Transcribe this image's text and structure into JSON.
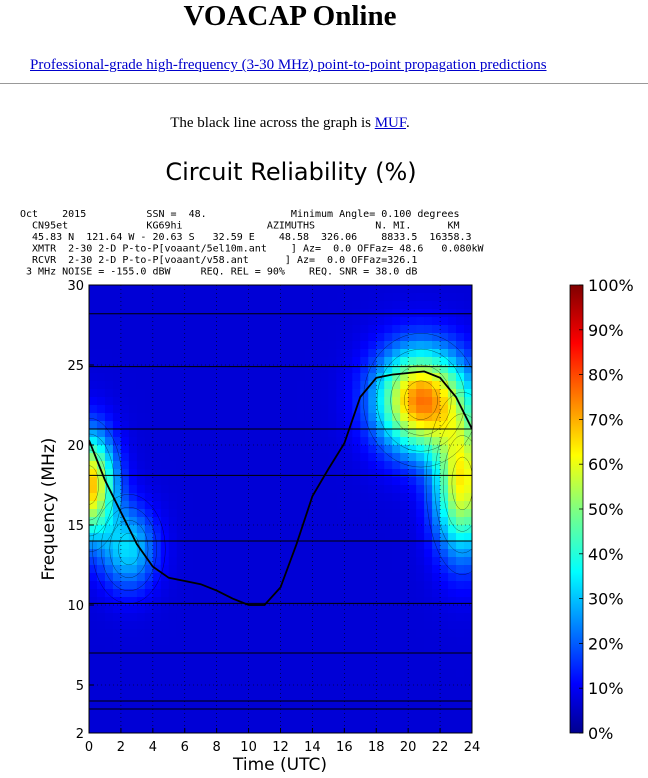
{
  "page": {
    "title": "VOACAP Online",
    "subtitle_link": "Professional-grade high-frequency (3-30 MHz) point-to-point propagation predictions",
    "muf_note_prefix": "The black line across the graph is ",
    "muf_link": "MUF",
    "muf_note_suffix": "."
  },
  "chart_data": {
    "type": "heatmap",
    "title": "Circuit Reliability (%)",
    "xlabel": "Time (UTC)",
    "ylabel": "Frequency (MHz)",
    "xlim": [
      0,
      24
    ],
    "ylim": [
      2,
      30
    ],
    "xticks": [
      0,
      2,
      4,
      6,
      8,
      10,
      12,
      14,
      16,
      18,
      20,
      22,
      24
    ],
    "yticks": [
      2,
      5,
      10,
      15,
      20,
      25,
      30
    ],
    "colorbar_ticks": [
      "100%",
      "90%",
      "80%",
      "70%",
      "60%",
      "50%",
      "40%",
      "30%",
      "20%",
      "10%",
      "0%"
    ],
    "colorbar_values": [
      100,
      90,
      80,
      70,
      60,
      50,
      40,
      30,
      20,
      10,
      0
    ],
    "header_lines": [
      "Oct    2015          SSN =  48.              Minimum Angle= 0.100 degrees",
      "  CN95et             KG69hi              AZIMUTHS          N. MI.      KM",
      "  45.83 N  121.64 W - 20.63 S   32.59 E    48.58  326.06    8833.5  16358.3",
      "  XMTR  2-30 2-D P-to-P[voaant/5el10m.ant    ] Az=  0.0 OFFaz= 48.6   0.080kW",
      "  RCVR  2-30 2-D P-to-P[voaant/v58.ant      ] Az=  0.0 OFFaz=326.1",
      " 3 MHz NOISE = -155.0 dBW     REQ. REL = 90%    REQ. SNR = 38.0 dB"
    ],
    "muf": {
      "x": [
        0,
        1,
        2,
        3,
        4,
        5,
        6,
        7,
        8,
        9,
        10,
        11,
        12,
        13,
        14,
        15,
        16,
        17,
        18,
        19,
        20,
        21,
        22,
        23,
        24
      ],
      "y": [
        20.3,
        17.8,
        15.8,
        13.8,
        12.4,
        11.7,
        11.5,
        11.3,
        10.9,
        10.4,
        10.0,
        10.0,
        11.1,
        13.8,
        16.8,
        18.5,
        20.1,
        23.0,
        24.2,
        24.4,
        24.5,
        24.6,
        24.2,
        23.0,
        21.0
      ]
    },
    "reliability_blobs": [
      {
        "name": "evening-high-band",
        "x": 20.8,
        "y": 22.8,
        "sx": 1.9,
        "sy": 2.2,
        "peak": 68
      },
      {
        "name": "evening-low-band",
        "x": 23.4,
        "y": 17.6,
        "sx": 1.2,
        "sy": 3.0,
        "peak": 55
      },
      {
        "name": "early-utc",
        "x": 0.0,
        "y": 17.5,
        "sx": 1.1,
        "sy": 2.2,
        "peak": 62
      },
      {
        "name": "early-utc-tail",
        "x": 2.5,
        "y": 13.5,
        "sx": 1.2,
        "sy": 1.8,
        "peak": 25
      }
    ],
    "frequency_lines": [
      3.5,
      4.0,
      7.0,
      10.1,
      14.0,
      18.1,
      21.0,
      24.9,
      28.2
    ]
  }
}
